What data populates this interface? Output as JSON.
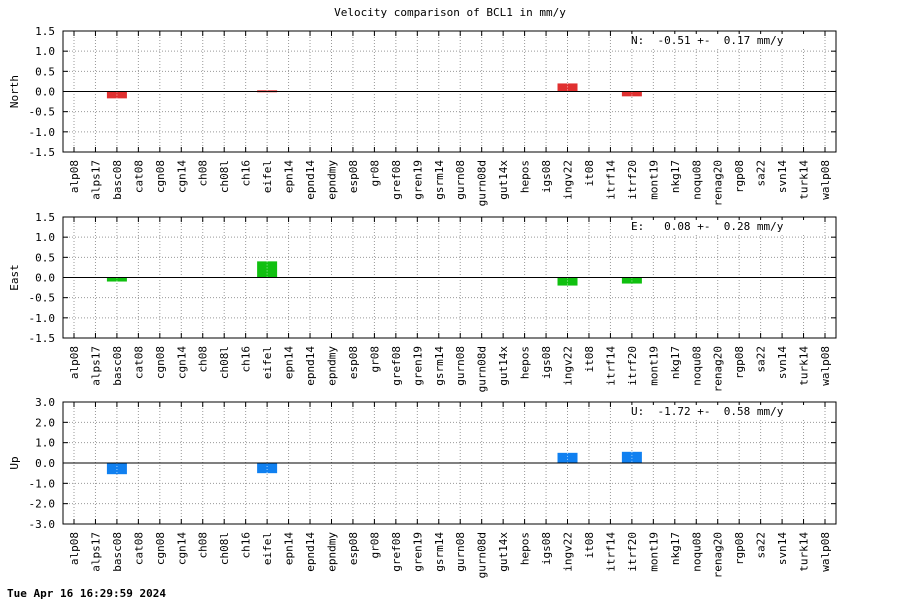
{
  "title": "Velocity comparison of BCL1 in mm/y",
  "timestamp": "Tue Apr 16 16:29:59 2024",
  "chart_data": [
    {
      "type": "bar",
      "ylabel": "North",
      "ylim": [
        -1.5,
        1.5
      ],
      "yticks": [
        "1.5",
        "1.0",
        "0.5",
        "0.0",
        "-0.5",
        "-1.0",
        "-1.5"
      ],
      "annotation": "N:  -0.51 +-  0.17 mm/y",
      "color": "#e03030",
      "grid": true,
      "categories": [
        "alp08",
        "alps17",
        "basc08",
        "cat08",
        "cgn08",
        "cgn14",
        "ch08",
        "ch08l",
        "ch16",
        "eifel",
        "epn14",
        "epnd14",
        "epndmy",
        "esp08",
        "gr08",
        "gref08",
        "gren19",
        "gsrm14",
        "gurn08",
        "gurn08d",
        "gut14x",
        "hepos",
        "igs08",
        "ingv22",
        "it08",
        "itrf14",
        "itrf20",
        "mont19",
        "nkg17",
        "noqu08",
        "renag20",
        "rgp08",
        "sa22",
        "svn14",
        "turk14",
        "walp08"
      ],
      "values": [
        null,
        null,
        -0.17,
        null,
        null,
        null,
        null,
        null,
        null,
        0.03,
        null,
        null,
        null,
        null,
        null,
        null,
        null,
        null,
        null,
        null,
        null,
        null,
        null,
        0.2,
        null,
        null,
        -0.12,
        null,
        null,
        null,
        null,
        null,
        null,
        null,
        null,
        null
      ]
    },
    {
      "type": "bar",
      "ylabel": "East",
      "ylim": [
        -1.5,
        1.5
      ],
      "yticks": [
        "1.5",
        "1.0",
        "0.5",
        "0.0",
        "-0.5",
        "-1.0",
        "-1.5"
      ],
      "annotation": "E:   0.08 +-  0.28 mm/y",
      "color": "#10c010",
      "grid": true,
      "categories": [
        "alp08",
        "alps17",
        "basc08",
        "cat08",
        "cgn08",
        "cgn14",
        "ch08",
        "ch08l",
        "ch16",
        "eifel",
        "epn14",
        "epnd14",
        "epndmy",
        "esp08",
        "gr08",
        "gref08",
        "gren19",
        "gsrm14",
        "gurn08",
        "gurn08d",
        "gut14x",
        "hepos",
        "igs08",
        "ingv22",
        "it08",
        "itrf14",
        "itrf20",
        "mont19",
        "nkg17",
        "noqu08",
        "renag20",
        "rgp08",
        "sa22",
        "svn14",
        "turk14",
        "walp08"
      ],
      "values": [
        null,
        null,
        -0.1,
        null,
        null,
        null,
        null,
        null,
        null,
        0.4,
        null,
        null,
        null,
        null,
        null,
        null,
        null,
        null,
        null,
        null,
        null,
        null,
        null,
        -0.2,
        null,
        null,
        -0.15,
        null,
        null,
        null,
        null,
        null,
        null,
        null,
        null,
        null
      ]
    },
    {
      "type": "bar",
      "ylabel": "Up",
      "ylim": [
        -3.0,
        3.0
      ],
      "yticks": [
        "3.0",
        "2.0",
        "1.0",
        "0.0",
        "-1.0",
        "-2.0",
        "-3.0"
      ],
      "annotation": "U:  -1.72 +-  0.58 mm/y",
      "color": "#1080f0",
      "grid": true,
      "categories": [
        "alp08",
        "alps17",
        "basc08",
        "cat08",
        "cgn08",
        "cgn14",
        "ch08",
        "ch08l",
        "ch16",
        "eifel",
        "epn14",
        "epnd14",
        "epndmy",
        "esp08",
        "gr08",
        "gref08",
        "gren19",
        "gsrm14",
        "gurn08",
        "gurn08d",
        "gut14x",
        "hepos",
        "igs08",
        "ingv22",
        "it08",
        "itrf14",
        "itrf20",
        "mont19",
        "nkg17",
        "noqu08",
        "renag20",
        "rgp08",
        "sa22",
        "svn14",
        "turk14",
        "walp08"
      ],
      "values": [
        null,
        null,
        -0.55,
        null,
        null,
        null,
        null,
        null,
        null,
        -0.5,
        null,
        null,
        null,
        null,
        null,
        null,
        null,
        null,
        null,
        null,
        null,
        null,
        null,
        0.5,
        null,
        null,
        0.55,
        null,
        null,
        null,
        null,
        null,
        null,
        null,
        null,
        null
      ]
    }
  ]
}
